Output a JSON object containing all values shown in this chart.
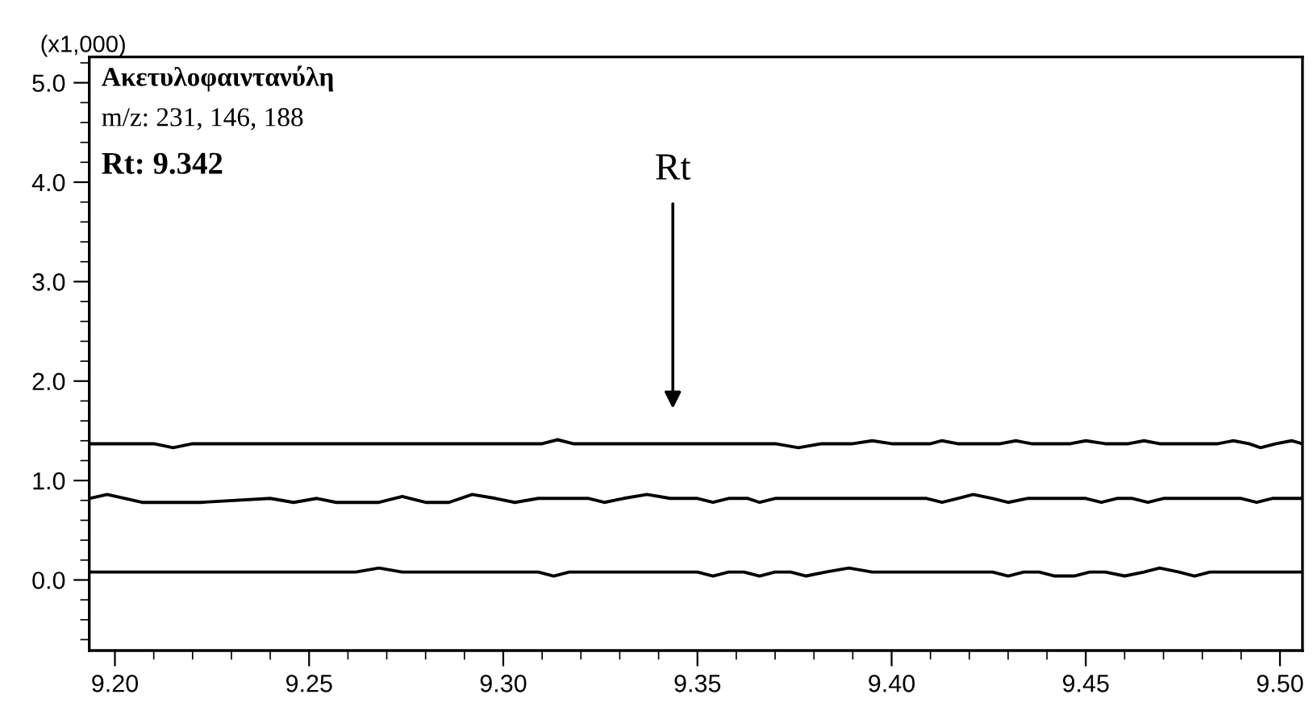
{
  "chart_data": {
    "type": "line",
    "title": "Ακετυλοφαιντανύλη",
    "ylabel": "(x1,000)",
    "annotations": [
      "m/z: 231, 146, 188",
      "Rt: 9.342",
      "Rt"
    ],
    "xlim": [
      9.1934,
      9.5058
    ],
    "xticks": [
      {
        "value": 9.2,
        "label": "9.20"
      },
      {
        "value": 9.25,
        "label": "9.25"
      },
      {
        "value": 9.3,
        "label": "9.30"
      },
      {
        "value": 9.35,
        "label": "9.35"
      },
      {
        "value": 9.4,
        "label": "9.40"
      },
      {
        "value": 9.45,
        "label": "9.45"
      },
      {
        "value": 9.5,
        "label": "9.50"
      }
    ],
    "ylim": [
      -0.71,
      5.26
    ],
    "yticks": [
      {
        "value": 0,
        "label": "0.0"
      },
      {
        "value": 1,
        "label": "1.0"
      },
      {
        "value": 2,
        "label": "2.0"
      },
      {
        "value": 3,
        "label": "3.0"
      },
      {
        "value": 4,
        "label": "4.0"
      },
      {
        "value": 5,
        "label": "5.0"
      }
    ],
    "grid": false,
    "marker": "none",
    "line_style": "solid",
    "series": [
      {
        "color": "#000000",
        "x": [
          9.1934,
          9.21,
          9.215,
          9.22,
          9.31,
          9.314,
          9.318,
          9.37,
          9.376,
          9.382,
          9.39,
          9.395,
          9.4,
          9.41,
          9.413,
          9.417,
          9.428,
          9.432,
          9.436,
          9.446,
          9.45,
          9.455,
          9.461,
          9.465,
          9.469,
          9.484,
          9.488,
          9.492,
          9.495,
          9.499,
          9.503,
          9.5058
        ],
        "values": [
          1.37,
          1.37,
          1.33,
          1.37,
          1.37,
          1.41,
          1.37,
          1.37,
          1.33,
          1.37,
          1.37,
          1.4,
          1.37,
          1.37,
          1.4,
          1.37,
          1.37,
          1.4,
          1.37,
          1.37,
          1.4,
          1.37,
          1.37,
          1.4,
          1.37,
          1.37,
          1.4,
          1.37,
          1.33,
          1.37,
          1.4,
          1.37
        ]
      },
      {
        "color": "#000000",
        "x": [
          9.1934,
          9.198,
          9.207,
          9.222,
          9.24,
          9.246,
          9.252,
          9.257,
          9.268,
          9.274,
          9.28,
          9.286,
          9.292,
          9.298,
          9.303,
          9.309,
          9.322,
          9.326,
          9.331,
          9.337,
          9.343,
          9.35,
          9.354,
          9.358,
          9.363,
          9.366,
          9.37,
          9.409,
          9.413,
          9.417,
          9.421,
          9.426,
          9.43,
          9.435,
          9.45,
          9.454,
          9.458,
          9.462,
          9.466,
          9.47,
          9.49,
          9.494,
          9.498,
          9.5058
        ],
        "values": [
          0.82,
          0.86,
          0.78,
          0.78,
          0.82,
          0.78,
          0.82,
          0.78,
          0.78,
          0.84,
          0.78,
          0.78,
          0.86,
          0.82,
          0.78,
          0.82,
          0.82,
          0.78,
          0.82,
          0.86,
          0.82,
          0.82,
          0.78,
          0.82,
          0.82,
          0.78,
          0.82,
          0.82,
          0.78,
          0.82,
          0.86,
          0.82,
          0.78,
          0.82,
          0.82,
          0.78,
          0.82,
          0.82,
          0.78,
          0.82,
          0.82,
          0.78,
          0.82,
          0.82
        ]
      },
      {
        "color": "#000000",
        "x": [
          9.1934,
          9.262,
          9.268,
          9.274,
          9.309,
          9.313,
          9.317,
          9.35,
          9.354,
          9.358,
          9.362,
          9.366,
          9.37,
          9.374,
          9.378,
          9.383,
          9.389,
          9.395,
          9.426,
          9.43,
          9.434,
          9.438,
          9.442,
          9.447,
          9.451,
          9.455,
          9.46,
          9.465,
          9.469,
          9.474,
          9.478,
          9.482,
          9.5058
        ],
        "values": [
          0.08,
          0.08,
          0.12,
          0.08,
          0.08,
          0.04,
          0.08,
          0.08,
          0.04,
          0.08,
          0.08,
          0.04,
          0.08,
          0.08,
          0.04,
          0.08,
          0.12,
          0.08,
          0.08,
          0.04,
          0.08,
          0.08,
          0.04,
          0.04,
          0.08,
          0.08,
          0.04,
          0.08,
          0.12,
          0.08,
          0.04,
          0.08,
          0.08
        ]
      }
    ]
  }
}
